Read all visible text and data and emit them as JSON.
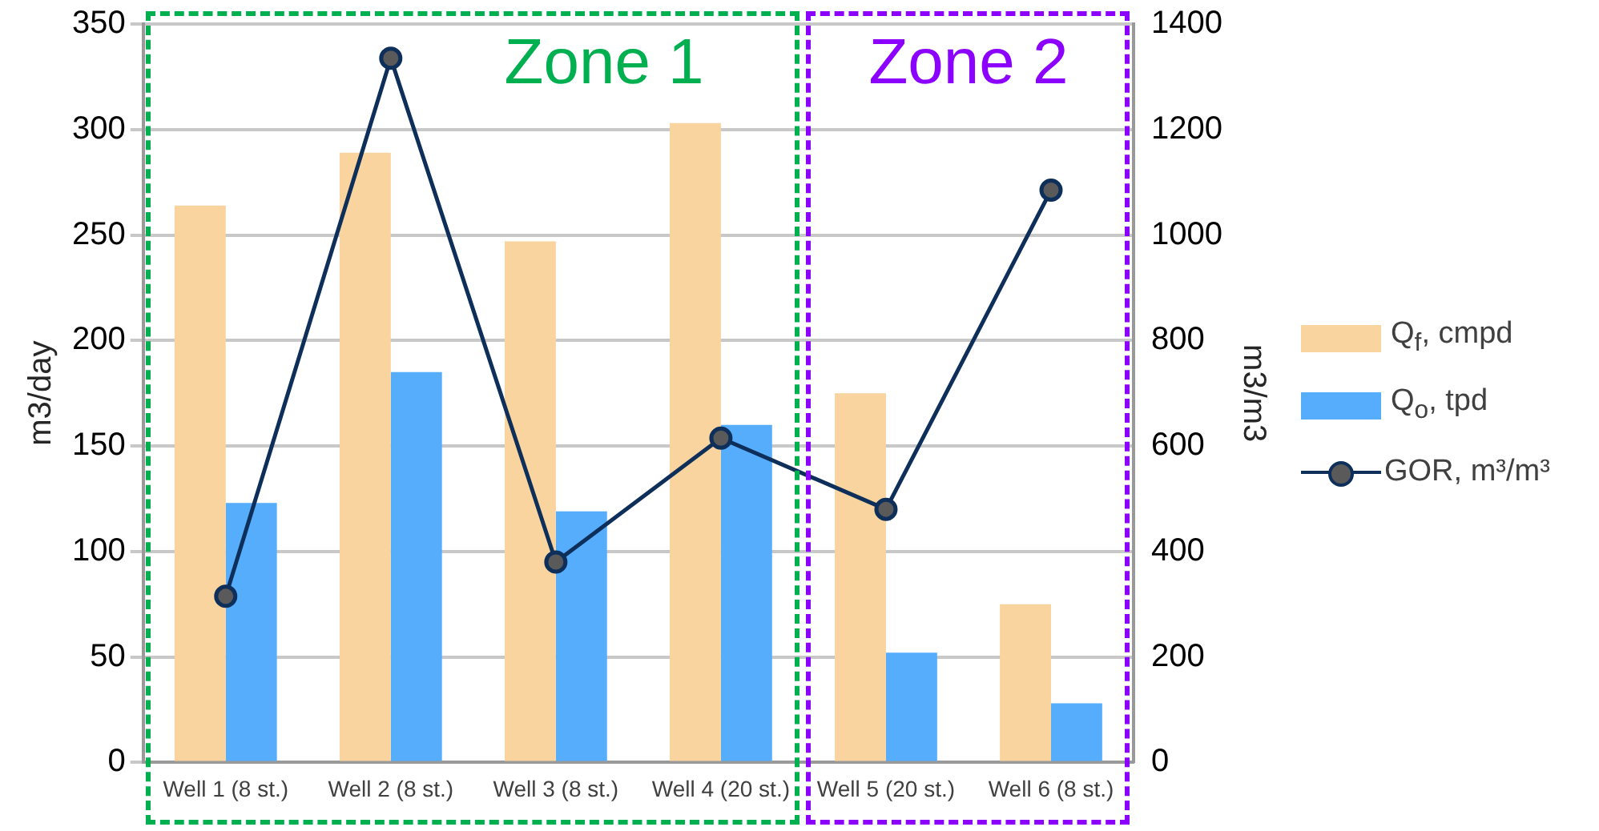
{
  "chart_data": {
    "type": "bar",
    "categories": [
      "Well 1 (8 st.)",
      "Well 2 (8 st.)",
      "Well 3 (8 st.)",
      "Well 4 (20 st.)",
      "Well 5 (20 st.)",
      "Well 6 (8 st.)"
    ],
    "series": [
      {
        "name": "Q$_{f}$, cmpd",
        "color": "#f9d49e",
        "values": [
          264,
          289,
          247,
          303,
          175,
          75
        ]
      },
      {
        "name": "Q$_{o}$, tpd",
        "color": "#55adfc",
        "values": [
          123,
          185,
          119,
          160,
          52,
          28
        ]
      },
      {
        "name": "GOR, m³/m³",
        "type": "line",
        "axis": "y2",
        "color": "#0d2f5a",
        "marker": "circle",
        "values": [
          315,
          1335,
          380,
          615,
          480,
          1085
        ]
      }
    ],
    "ylabel": "m3/day",
    "y2label": "m3/m3",
    "ylim": [
      0,
      350
    ],
    "yticks": [
      0,
      50,
      100,
      150,
      200,
      250,
      300,
      350
    ],
    "y2lim": [
      0,
      1400
    ],
    "y2ticks": [
      0,
      200,
      400,
      600,
      800,
      1000,
      1200,
      1400
    ],
    "annotations": [
      "Zone 1",
      "Zone 2"
    ],
    "grid": "y",
    "legend": "right"
  }
}
